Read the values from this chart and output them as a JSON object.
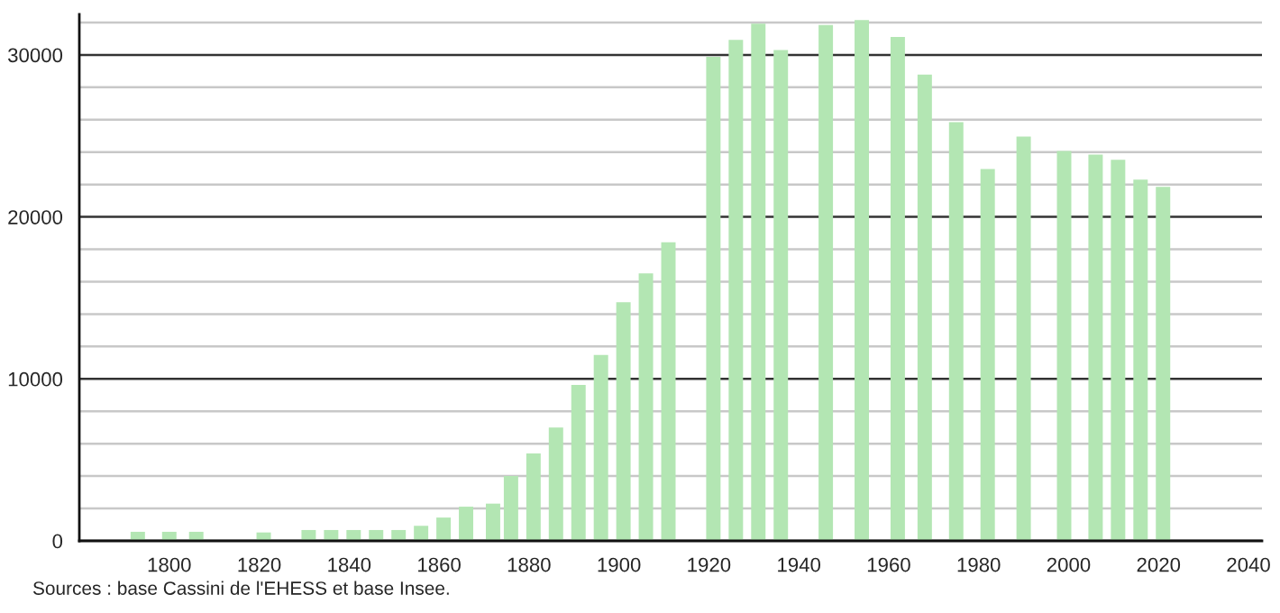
{
  "chart_data": {
    "type": "bar",
    "x": [
      1793,
      1800,
      1806,
      1821,
      1831,
      1836,
      1841,
      1846,
      1851,
      1856,
      1861,
      1866,
      1872,
      1876,
      1881,
      1886,
      1891,
      1896,
      1901,
      1906,
      1911,
      1921,
      1926,
      1931,
      1936,
      1946,
      1954,
      1962,
      1968,
      1975,
      1982,
      1990,
      1999,
      2006,
      2011,
      2016,
      2021
    ],
    "values": [
      560,
      560,
      560,
      520,
      670,
      670,
      670,
      670,
      670,
      930,
      1440,
      2110,
      2300,
      4000,
      5400,
      7000,
      9630,
      11480,
      14740,
      16520,
      18440,
      29890,
      30930,
      31930,
      30300,
      31850,
      32150,
      31110,
      28780,
      25850,
      22960,
      24960,
      24070,
      23850,
      23520,
      22300,
      21850
    ],
    "color": "#b3e6b3",
    "xlim": [
      1780,
      2043
    ],
    "xticks": [
      1800,
      1820,
      1840,
      1860,
      1880,
      1900,
      1920,
      1940,
      1960,
      1980,
      2000,
      2020,
      2040
    ],
    "ylim": [
      0,
      32500
    ],
    "yticks": [
      0,
      {
        "value": 2000,
        "label": null
      },
      {
        "value": 4000,
        "label": null
      },
      {
        "value": 6000,
        "label": null
      },
      {
        "value": 8000,
        "label": null
      },
      10000,
      {
        "value": 12000,
        "label": null
      },
      {
        "value": 14000,
        "label": null
      },
      {
        "value": 16000,
        "label": null
      },
      {
        "value": 18000,
        "label": null
      },
      20000,
      {
        "value": 22000,
        "label": null
      },
      {
        "value": 24000,
        "label": null
      },
      {
        "value": 26000,
        "label": null
      },
      {
        "value": 28000,
        "label": null
      },
      30000,
      {
        "value": 32000,
        "label": null
      }
    ],
    "grid": "y",
    "annotations": [
      "Sources : base Cassini de l'EHESS et base Insee."
    ]
  }
}
